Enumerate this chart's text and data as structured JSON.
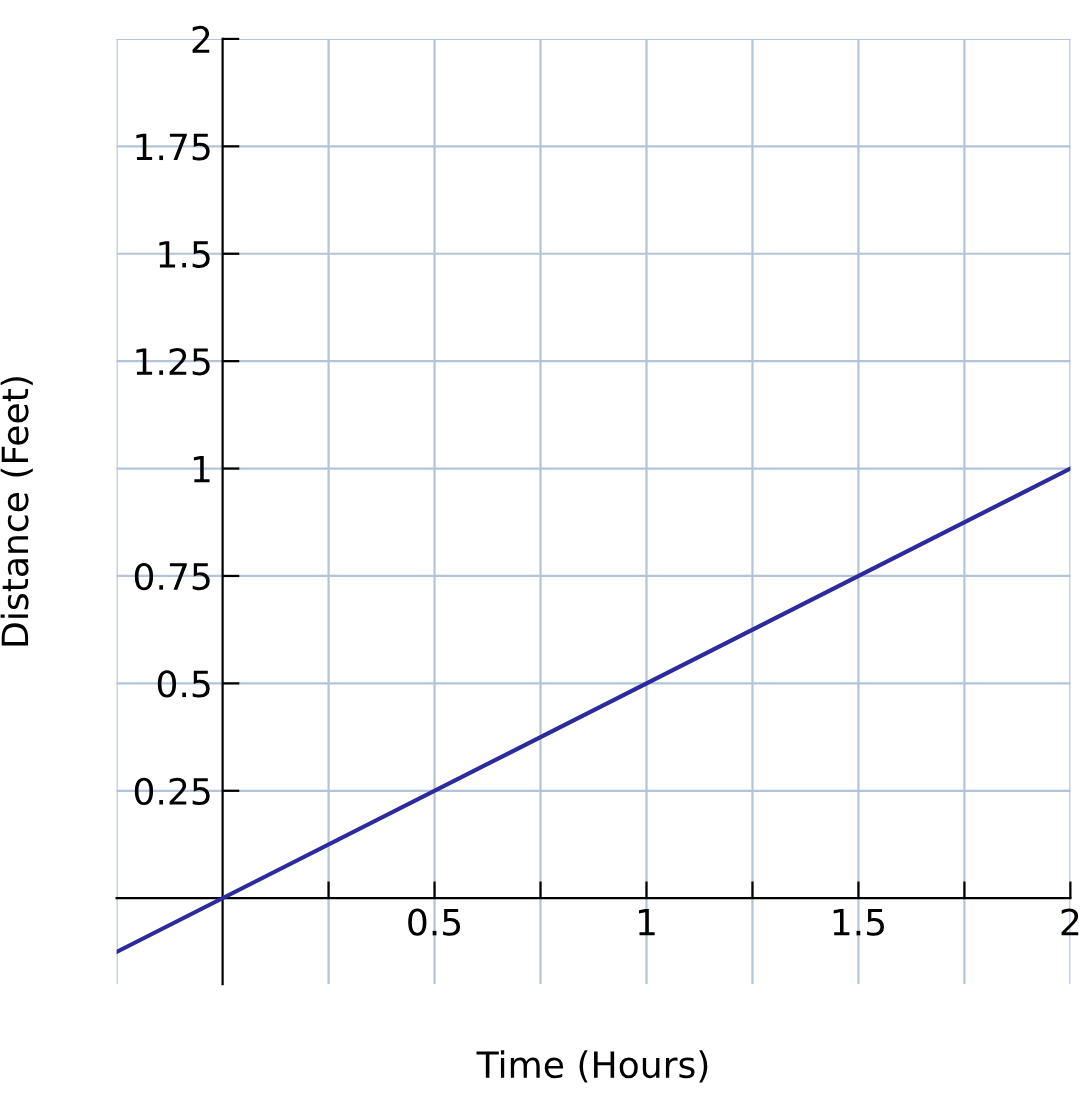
{
  "chart_data": {
    "type": "line",
    "xlabel": "Time (Hours)",
    "ylabel": "Distance (Feet)",
    "x": [
      -0.25,
      2
    ],
    "series": [
      {
        "color": "#2b2b9e",
        "values": [
          -0.125,
          1
        ]
      }
    ],
    "xlim": [
      -0.25,
      2
    ],
    "ylim": [
      -0.2,
      2
    ],
    "xticks": [
      {
        "value": 0.25,
        "label": null
      },
      0.5,
      {
        "value": 0.75,
        "label": null
      },
      1,
      {
        "value": 1.25,
        "label": null
      },
      1.5,
      {
        "value": 1.75,
        "label": null
      },
      2
    ],
    "yticks": [
      0.25,
      0.5,
      0.75,
      1,
      1.25,
      1.5,
      1.75,
      2
    ],
    "grid": true,
    "marker": "none",
    "line_style": "solid"
  }
}
